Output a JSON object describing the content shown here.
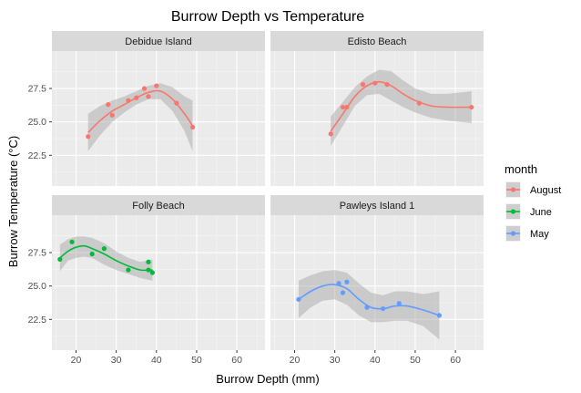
{
  "chart_data": {
    "type": "scatter",
    "title": "Burrow Depth vs Temperature",
    "xlabel": "Burrow Depth (mm)",
    "ylabel": "Burrow Temperature (°C)",
    "xlim": [
      14,
      67
    ],
    "ylim": [
      20.2,
      30.3
    ],
    "x_ticks": [
      20,
      30,
      40,
      50,
      60
    ],
    "y_ticks": [
      22.5,
      25.0,
      27.5
    ],
    "y_tick_labels": [
      "22.5",
      "25.0",
      "27.5"
    ],
    "grid": true,
    "legend": {
      "title": "month",
      "position": "right",
      "entries": [
        {
          "label": "August",
          "color": "#F8766D"
        },
        {
          "label": "June",
          "color": "#00BA38"
        },
        {
          "label": "May",
          "color": "#619CFF"
        }
      ]
    },
    "panels": [
      {
        "name": "Debidue Island",
        "month": "August",
        "color": "#F8766D",
        "points": [
          [
            23,
            23.9
          ],
          [
            28,
            26.3
          ],
          [
            29,
            25.5
          ],
          [
            33,
            26.6
          ],
          [
            35,
            26.8
          ],
          [
            37,
            27.5
          ],
          [
            38,
            26.9
          ],
          [
            40,
            27.7
          ],
          [
            45,
            26.4
          ],
          [
            49,
            24.6
          ]
        ],
        "smooth": [
          [
            23,
            24.2
          ],
          [
            26,
            25.1
          ],
          [
            29,
            25.8
          ],
          [
            32,
            26.3
          ],
          [
            35,
            26.8
          ],
          [
            38,
            27.2
          ],
          [
            41,
            27.3
          ],
          [
            44,
            26.7
          ],
          [
            47,
            25.6
          ],
          [
            49,
            24.7
          ]
        ],
        "band_upper": [
          25.6,
          26.2,
          26.6,
          26.9,
          27.3,
          27.7,
          27.9,
          27.6,
          26.9,
          26.6
        ],
        "band_lower": [
          22.8,
          24.0,
          25.0,
          25.7,
          26.3,
          26.7,
          26.7,
          25.8,
          24.3,
          22.8
        ]
      },
      {
        "name": "Edisto Beach",
        "month": "August",
        "color": "#F8766D",
        "points": [
          [
            29,
            24.1
          ],
          [
            32,
            26.1
          ],
          [
            33,
            26.1
          ],
          [
            37,
            27.8
          ],
          [
            40,
            27.9
          ],
          [
            43,
            27.8
          ],
          [
            51,
            26.4
          ],
          [
            64,
            26.1
          ]
        ],
        "smooth": [
          [
            29,
            24.3
          ],
          [
            32,
            25.6
          ],
          [
            35,
            26.9
          ],
          [
            38,
            27.7
          ],
          [
            41,
            28.0
          ],
          [
            44,
            27.7
          ],
          [
            47,
            27.1
          ],
          [
            50,
            26.6
          ],
          [
            54,
            26.2
          ],
          [
            58,
            26.1
          ],
          [
            64,
            26.1
          ]
        ],
        "band_upper": [
          25.4,
          26.5,
          27.6,
          28.4,
          28.9,
          28.8,
          28.1,
          27.5,
          27.1,
          27.1,
          27.3
        ],
        "band_lower": [
          23.2,
          24.7,
          26.2,
          27.0,
          27.1,
          26.6,
          26.1,
          25.7,
          25.3,
          25.1,
          24.9
        ]
      },
      {
        "name": "Folly Beach",
        "month": "June",
        "color": "#00BA38",
        "points": [
          [
            16,
            27.0
          ],
          [
            19,
            28.3
          ],
          [
            24,
            27.4
          ],
          [
            27,
            27.8
          ],
          [
            33,
            26.2
          ],
          [
            38,
            26.2
          ],
          [
            38,
            26.8
          ],
          [
            39,
            26.0
          ]
        ],
        "smooth": [
          [
            16,
            27.1
          ],
          [
            18,
            27.6
          ],
          [
            20,
            27.9
          ],
          [
            22,
            28.0
          ],
          [
            24,
            27.8
          ],
          [
            27,
            27.4
          ],
          [
            30,
            26.9
          ],
          [
            33,
            26.5
          ],
          [
            36,
            26.2
          ],
          [
            39,
            26.2
          ]
        ],
        "band_upper": [
          28.1,
          28.5,
          28.7,
          28.7,
          28.6,
          28.2,
          27.6,
          27.1,
          26.8,
          27.0
        ],
        "band_lower": [
          26.1,
          26.9,
          27.1,
          27.2,
          27.1,
          26.6,
          26.2,
          25.9,
          25.6,
          25.4
        ]
      },
      {
        "name": "Pawleys Island 1",
        "month": "May",
        "color": "#619CFF",
        "points": [
          [
            21,
            24.0
          ],
          [
            31,
            25.2
          ],
          [
            32,
            24.5
          ],
          [
            33,
            25.3
          ],
          [
            38,
            23.4
          ],
          [
            42,
            23.3
          ],
          [
            46,
            23.7
          ],
          [
            56,
            22.8
          ]
        ],
        "smooth": [
          [
            21,
            24.0
          ],
          [
            24,
            24.6
          ],
          [
            27,
            25.0
          ],
          [
            30,
            25.1
          ],
          [
            33,
            24.8
          ],
          [
            36,
            24.0
          ],
          [
            39,
            23.4
          ],
          [
            42,
            23.3
          ],
          [
            45,
            23.5
          ],
          [
            48,
            23.5
          ],
          [
            52,
            23.2
          ],
          [
            56,
            22.8
          ]
        ],
        "band_upper": [
          25.4,
          25.8,
          26.1,
          26.2,
          26.0,
          25.2,
          24.5,
          24.3,
          24.6,
          24.6,
          24.4,
          24.6
        ],
        "band_lower": [
          22.6,
          23.4,
          23.9,
          24.0,
          23.6,
          22.8,
          22.3,
          22.3,
          22.4,
          22.4,
          22.0,
          21.0
        ]
      }
    ]
  }
}
